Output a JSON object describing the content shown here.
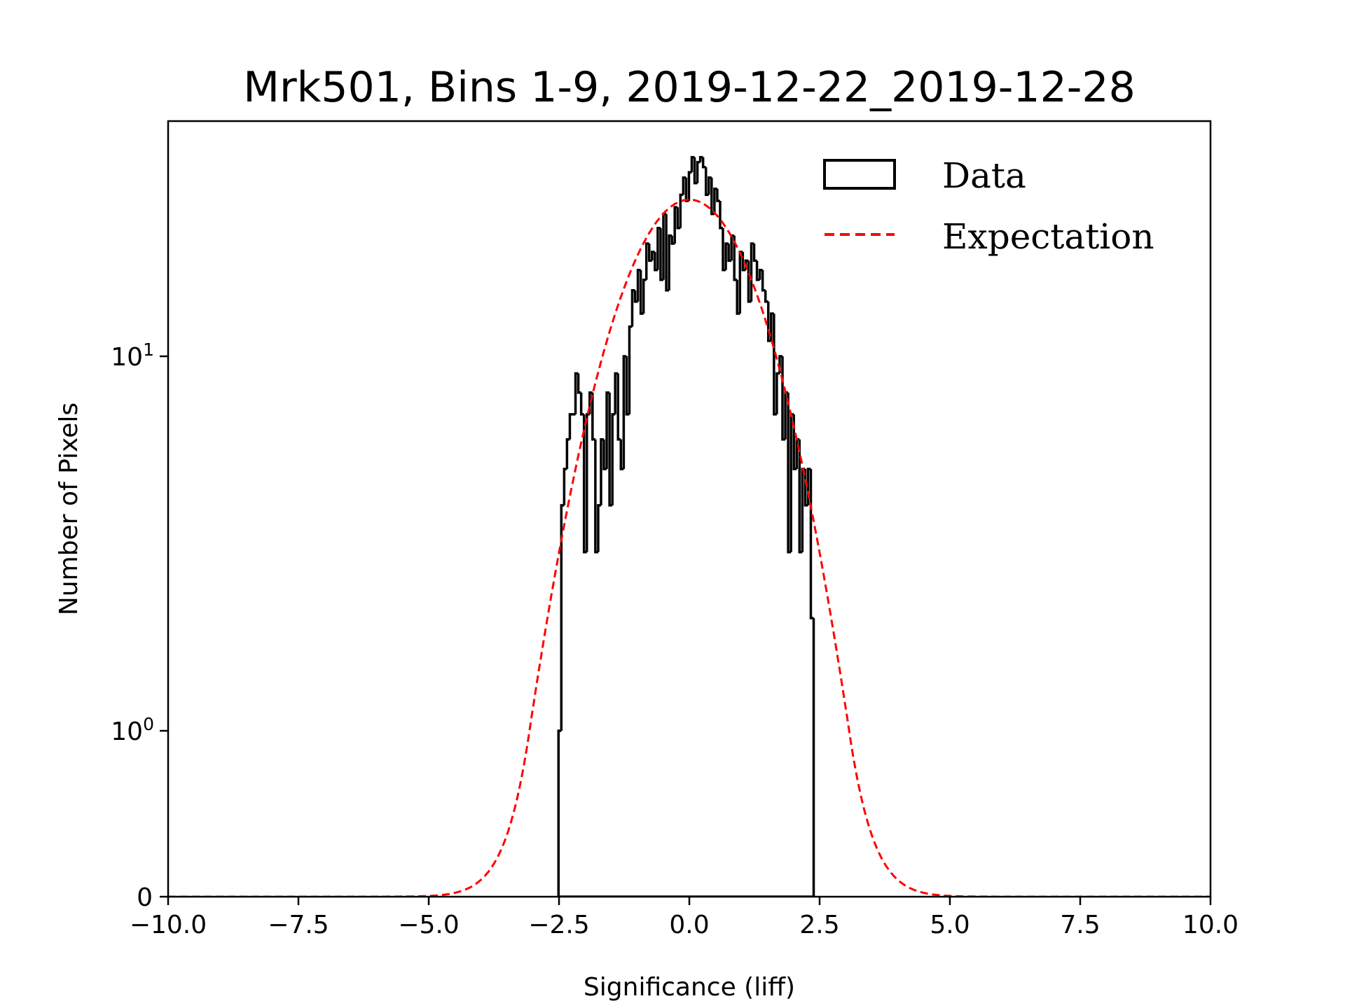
{
  "chart_data": {
    "type": "histogram",
    "title": "Mrk501, Bins 1-9, 2019-12-22_2019-12-28",
    "xlabel": "Significance (liff)",
    "ylabel": "Number of Pixels",
    "xlim": [
      -10,
      10
    ],
    "ylim": [
      0,
      42
    ],
    "yscale": "symlog",
    "linthresh": 1,
    "xticks": [
      -10.0,
      -7.5,
      -5.0,
      -2.5,
      0.0,
      2.5,
      5.0,
      7.5,
      10.0
    ],
    "xtick_labels": [
      "−10.0",
      "−7.5",
      "−5.0",
      "−2.5",
      "0.0",
      "2.5",
      "5.0",
      "7.5",
      "10.0"
    ],
    "yticks": [
      {
        "value": 0,
        "label": "0",
        "sup": ""
      },
      {
        "value": 1,
        "label": "10",
        "sup": "0"
      },
      {
        "value": 10,
        "label": "10",
        "sup": "1"
      }
    ],
    "grid": false,
    "legend": {
      "placement": "top-right",
      "entries": [
        {
          "label": "Data",
          "style": "step-outline",
          "color": "#000000"
        },
        {
          "label": "Expectation",
          "style": "dashed-line",
          "color": "#ff0000"
        }
      ]
    },
    "series": [
      {
        "name": "Data",
        "kind": "step-histogram",
        "color": "#000000",
        "bin_start": -2.51,
        "bin_width": 0.0544,
        "counts": [
          1,
          4,
          5,
          6,
          7,
          7,
          9,
          8,
          7,
          3,
          7,
          8,
          6,
          3,
          4,
          6,
          5,
          8,
          4,
          7,
          9,
          6,
          5,
          10,
          7,
          12,
          15,
          14,
          17,
          13,
          16,
          20,
          18,
          19,
          17,
          22,
          16,
          24,
          15,
          21,
          20,
          25,
          22,
          27,
          30,
          26,
          31,
          34,
          29,
          33,
          34,
          32,
          27,
          30,
          24,
          28,
          26,
          22,
          17,
          20,
          18,
          21,
          16,
          13,
          19,
          17,
          18,
          14,
          20,
          18,
          16,
          17,
          15,
          14,
          11,
          13,
          7,
          9,
          10,
          6,
          8,
          3,
          7,
          5,
          6,
          3,
          5,
          4,
          5,
          2
        ],
        "edge_counts": {
          "left": 0,
          "right": 0
        }
      },
      {
        "name": "Expectation",
        "kind": "gaussian-curve",
        "color": "#ff0000",
        "amplitude": 26.2,
        "mean": 0.0,
        "sigma": 1.2,
        "x_range": [
          -10,
          10
        ]
      }
    ]
  }
}
